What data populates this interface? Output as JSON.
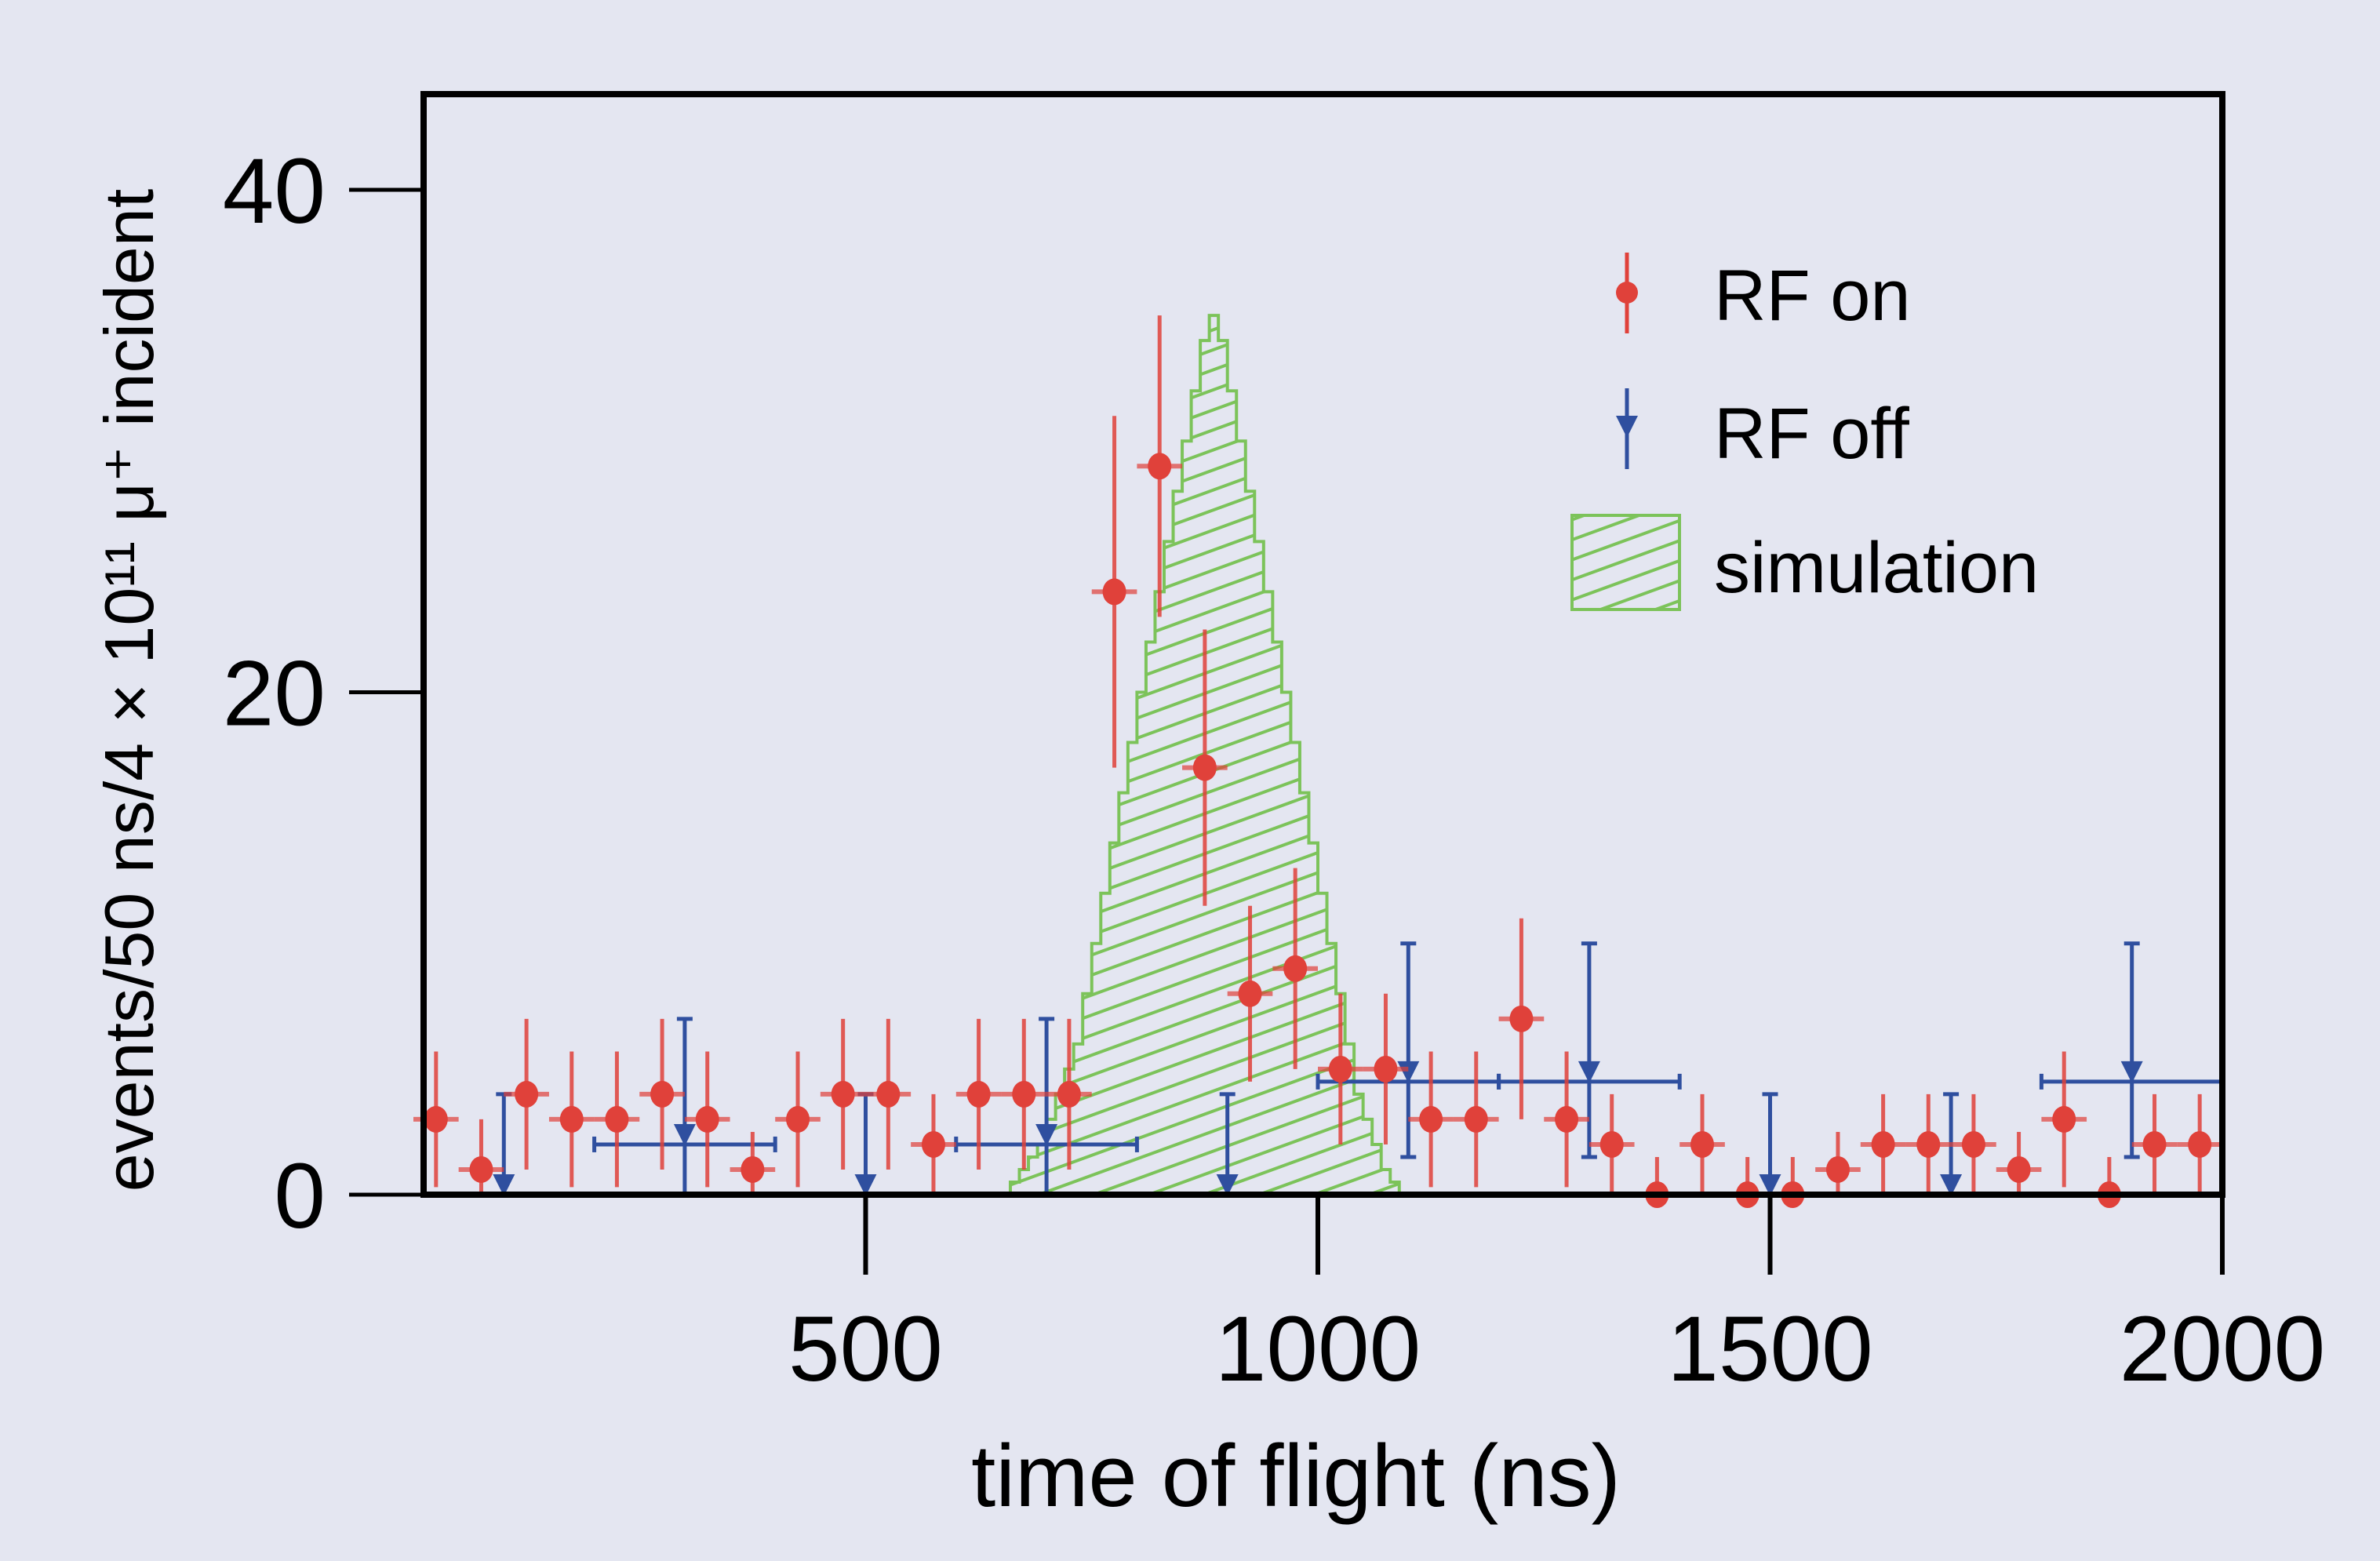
{
  "chart_data": {
    "type": "scatter",
    "title": "",
    "xlabel": "time of flight (ns)",
    "ylabel": "events/50 ns/4 × 10¹¹ μ⁺ incident",
    "xlim": [
      0,
      2000
    ],
    "ylim": [
      0,
      40
    ],
    "xticks": [
      500,
      1000,
      1500,
      2000
    ],
    "xtick_labels": [
      "500",
      "1000",
      "1500",
      "2000"
    ],
    "yticks": [
      0,
      20,
      40
    ],
    "ytick_labels": [
      "0",
      "20",
      "40"
    ],
    "grid": false,
    "legend_position": "top-right",
    "colors": {
      "rf_on": "#e0413a",
      "rf_off": "#2f4f9f",
      "simulation": "#7cc35a",
      "axis": "#000000",
      "background": "#e4e6f1"
    },
    "legend": [
      "RF on",
      "RF off",
      "simulation"
    ],
    "series": [
      {
        "name": "RF on",
        "marker": "circle",
        "x": [
          25,
          75,
          125,
          175,
          225,
          275,
          325,
          375,
          425,
          475,
          525,
          575,
          625,
          675,
          725,
          775,
          825,
          875,
          925,
          975,
          1025,
          1075,
          1125,
          1175,
          1225,
          1275,
          1325,
          1375,
          1425,
          1475,
          1525,
          1575,
          1625,
          1675,
          1725,
          1775,
          1825,
          1875,
          1925,
          1975
        ],
        "y": [
          3,
          1,
          4,
          3,
          3,
          4,
          3,
          1,
          3,
          4,
          4,
          2,
          4,
          4,
          4,
          24,
          29,
          17,
          8,
          9,
          5,
          5,
          3,
          3,
          7,
          3,
          2,
          0,
          2,
          0,
          0,
          1,
          2,
          2,
          2,
          1,
          3,
          0,
          2,
          2
        ],
        "yerr": [
          2.7,
          2,
          3,
          2.7,
          2.7,
          3,
          2.7,
          1.5,
          2.7,
          3,
          3,
          2,
          3,
          3,
          3,
          7,
          6,
          5.5,
          3.5,
          4,
          3,
          3,
          2.7,
          2.7,
          4,
          2.7,
          2,
          1.5,
          2,
          1.5,
          1.5,
          1.5,
          2,
          2,
          2,
          1.5,
          2.7,
          1.5,
          2,
          2
        ],
        "xerr": 25
      },
      {
        "name": "RF off",
        "marker": "triangle-down",
        "x": [
          100,
          300,
          500,
          700,
          900,
          1100,
          1300,
          1500,
          1700,
          1900
        ],
        "y": [
          0,
          2,
          0,
          2,
          0,
          4.5,
          4.5,
          0,
          0,
          4.5
        ],
        "yerr_up": [
          4,
          5,
          4,
          5,
          4,
          5.5,
          5.5,
          4,
          4,
          5.5
        ],
        "yerr_down": [
          0,
          2,
          0,
          2,
          0,
          3,
          3,
          0,
          0,
          3
        ],
        "xerr": [
          0,
          100,
          0,
          100,
          0,
          100,
          100,
          0,
          0,
          100
        ]
      },
      {
        "name": "simulation",
        "type": "histogram",
        "bin_width": 10,
        "bins_start": 650,
        "values": [
          0,
          0.5,
          1,
          1.5,
          2,
          3,
          4,
          5,
          6,
          8,
          10,
          12,
          14,
          16,
          18,
          20,
          22,
          24,
          26,
          28,
          30,
          32,
          34,
          35,
          34,
          32,
          30,
          28,
          26,
          24,
          22,
          20,
          18,
          16,
          14,
          12,
          10,
          8,
          6,
          4,
          3,
          2,
          1,
          0.5,
          0,
          0,
          0
        ]
      }
    ]
  }
}
